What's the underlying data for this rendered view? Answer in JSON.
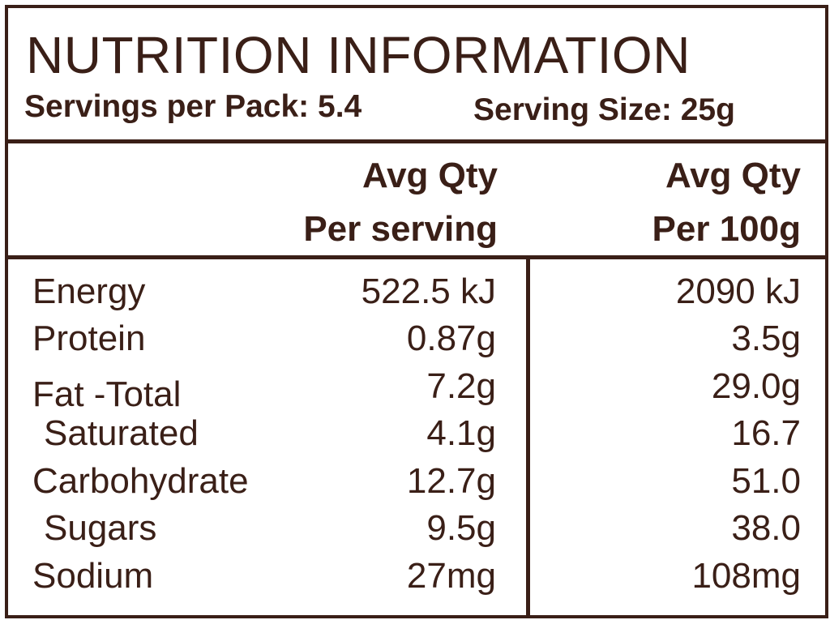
{
  "header": {
    "title": "NUTRITION INFORMATION",
    "servings_per_pack": "Servings per Pack: 5.4",
    "serving_size": "Serving Size: 25g"
  },
  "columns": {
    "per_serving": {
      "line1": "Avg Qty",
      "line2": "Per serving"
    },
    "per_100g": {
      "line1": "Avg Qty",
      "line2": "Per 100g"
    }
  },
  "rows": [
    {
      "label": "Energy",
      "per_serving": "522.5 kJ",
      "per_100g": "2090 kJ"
    },
    {
      "label": "Protein",
      "per_serving": "0.87g",
      "per_100g": "3.5g"
    },
    {
      "label": "Fat -Total",
      "per_serving": "7.2g",
      "per_100g": "29.0g"
    },
    {
      "label": "Saturated",
      "per_serving": "4.1g",
      "per_100g": "16.7"
    },
    {
      "label": "Carbohydrate",
      "per_serving": "12.7g",
      "per_100g": "51.0"
    },
    {
      "label": "Sugars",
      "per_serving": "9.5g",
      "per_100g": "38.0"
    },
    {
      "label": "Sodium",
      "per_serving": "27mg",
      "per_100g": "108mg"
    }
  ]
}
